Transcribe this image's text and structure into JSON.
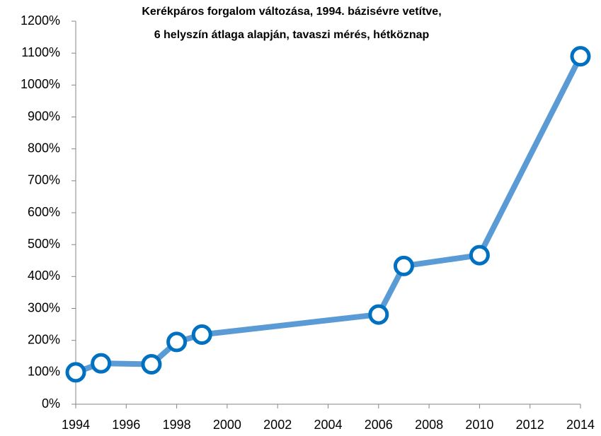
{
  "chart_data": {
    "type": "line",
    "title": [
      "Kerékpáros forgalom változása, 1994. bázisévre vetítve,",
      "6 helyszín átlaga alapján, tavaszi mérés, hétköznap"
    ],
    "x": [
      1994,
      1995,
      1997,
      1998,
      1999,
      2006,
      2007,
      2010,
      2014
    ],
    "series": [
      {
        "name": "Kerékpáros forgalom",
        "color": "#5b9bd5",
        "marker_color": "#0070c0",
        "values": [
          100,
          128,
          125,
          195,
          218,
          281,
          433,
          467,
          1090
        ]
      }
    ],
    "xlim": [
      1994,
      2014
    ],
    "xticks": [
      1994,
      1996,
      1998,
      2000,
      2002,
      2004,
      2006,
      2008,
      2010,
      2012,
      2014
    ],
    "ylim": [
      0,
      1200
    ],
    "yticks": [
      {
        "value": 0,
        "label": "0%"
      },
      {
        "value": 100,
        "label": "100%"
      },
      {
        "value": 200,
        "label": "200%"
      },
      {
        "value": 300,
        "label": "300%"
      },
      {
        "value": 400,
        "label": "400%"
      },
      {
        "value": 500,
        "label": "500%"
      },
      {
        "value": 600,
        "label": "600%"
      },
      {
        "value": 700,
        "label": "700%"
      },
      {
        "value": 800,
        "label": "800%"
      },
      {
        "value": 900,
        "label": "900%"
      },
      {
        "value": 1000,
        "label": "1000%"
      },
      {
        "value": 1100,
        "label": "1100%"
      },
      {
        "value": 1200,
        "label": "1200%"
      }
    ],
    "grid": false
  }
}
